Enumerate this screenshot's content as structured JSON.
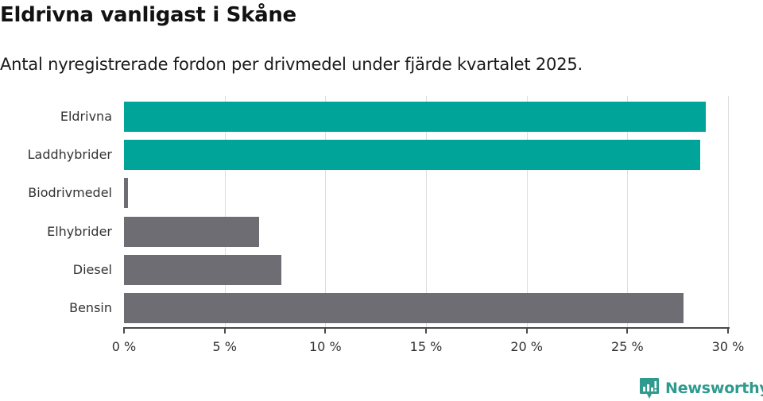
{
  "header": {
    "title": "Eldrivna vanligast i Skåne",
    "subtitle": "Antal nyregistrerade fordon per drivmedel under fjärde kvartalet 2025."
  },
  "chart_data": {
    "type": "bar",
    "orientation": "horizontal",
    "title": "Eldrivna vanligast i Skåne",
    "subtitle": "Antal nyregistrerade fordon per drivmedel under fjärde kvartalet 2025.",
    "categories": [
      "Eldrivna",
      "Laddhybrider",
      "Biodrivmedel",
      "Elhybrider",
      "Diesel",
      "Bensin"
    ],
    "values": [
      28.9,
      28.6,
      0.2,
      6.7,
      7.8,
      27.8
    ],
    "unit": "%",
    "colors": [
      "#00a499",
      "#00a499",
      "#6e6d73",
      "#6e6d73",
      "#6e6d73",
      "#6e6d73"
    ],
    "xlabel": "",
    "ylabel": "",
    "xlim": [
      0,
      30
    ],
    "xticks": [
      0,
      5,
      10,
      15,
      20,
      25,
      30
    ],
    "xtick_labels": [
      "0 %",
      "5 %",
      "10 %",
      "15 %",
      "20 %",
      "25 %",
      "30 %"
    ],
    "grid": true,
    "legend": null
  },
  "branding": {
    "name": "Newsworthy",
    "color": "#2f9a8e"
  }
}
